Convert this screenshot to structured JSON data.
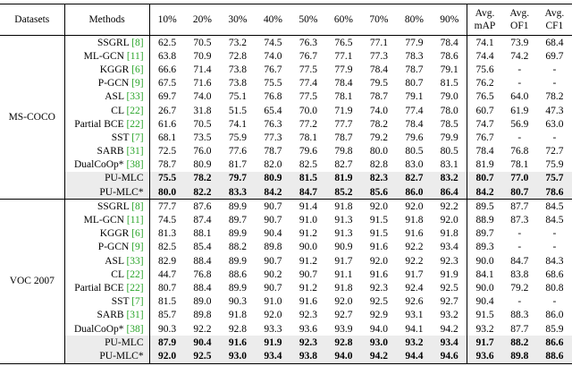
{
  "table": {
    "headers": [
      "Datasets",
      "Methods",
      "10%",
      "20%",
      "30%",
      "40%",
      "50%",
      "60%",
      "70%",
      "80%",
      "90%",
      "Avg. mAP",
      "Avg. OF1",
      "Avg. CF1"
    ],
    "groups": [
      {
        "dataset": "MS-COCO",
        "rows": [
          {
            "method": "SSGRL",
            "ref": "[8]",
            "values": [
              "62.5",
              "70.5",
              "73.2",
              "74.5",
              "76.3",
              "76.5",
              "77.1",
              "77.9",
              "78.4",
              "74.1",
              "73.9",
              "68.4"
            ]
          },
          {
            "method": "ML-GCN",
            "ref": "[11]",
            "values": [
              "63.8",
              "70.9",
              "72.8",
              "74.0",
              "76.7",
              "77.1",
              "77.3",
              "78.3",
              "78.6",
              "74.4",
              "74.2",
              "69.7"
            ]
          },
          {
            "method": "KGGR",
            "ref": "[6]",
            "values": [
              "66.6",
              "71.4",
              "73.8",
              "76.7",
              "77.5",
              "77.9",
              "78.4",
              "78.7",
              "79.1",
              "75.6",
              "-",
              "-"
            ]
          },
          {
            "method": "P-GCN",
            "ref": "[9]",
            "values": [
              "67.5",
              "71.6",
              "73.8",
              "75.5",
              "77.4",
              "78.4",
              "79.5",
              "80.7",
              "81.5",
              "76.2",
              "-",
              "-"
            ]
          },
          {
            "method": "ASL",
            "ref": "[33]",
            "values": [
              "69.7",
              "74.0",
              "75.1",
              "76.8",
              "77.5",
              "78.1",
              "78.7",
              "79.1",
              "79.0",
              "76.5",
              "64.0",
              "78.2"
            ]
          },
          {
            "method": "CL",
            "ref": "[22]",
            "values": [
              "26.7",
              "31.8",
              "51.5",
              "65.4",
              "70.0",
              "71.9",
              "74.0",
              "77.4",
              "78.0",
              "60.7",
              "61.9",
              "47.3"
            ]
          },
          {
            "method": "Partial BCE",
            "ref": "[22]",
            "values": [
              "61.6",
              "70.5",
              "74.1",
              "76.3",
              "77.2",
              "77.7",
              "78.2",
              "78.4",
              "78.5",
              "74.7",
              "56.9",
              "63.0"
            ]
          },
          {
            "method": "SST",
            "ref": "[7]",
            "values": [
              "68.1",
              "73.5",
              "75.9",
              "77.3",
              "78.1",
              "78.7",
              "79.2",
              "79.6",
              "79.9",
              "76.7",
              "-",
              "-"
            ]
          },
          {
            "method": "SARB",
            "ref": "[31]",
            "values": [
              "72.5",
              "76.0",
              "77.6",
              "78.7",
              "79.6",
              "79.8",
              "80.0",
              "80.5",
              "80.5",
              "78.4",
              "76.8",
              "72.7"
            ]
          },
          {
            "method": "DualCoOp*",
            "ref": "[38]",
            "values": [
              "78.7",
              "80.9",
              "81.7",
              "82.0",
              "82.5",
              "82.7",
              "82.8",
              "83.0",
              "83.1",
              "81.9",
              "78.1",
              "75.9"
            ]
          },
          {
            "method": "PU-MLC",
            "values": [
              "75.5",
              "78.2",
              "79.7",
              "80.9",
              "81.5",
              "81.9",
              "82.3",
              "82.7",
              "83.2",
              "80.7",
              "77.0",
              "75.7"
            ]
          },
          {
            "method": "PU-MLC*",
            "values": [
              "80.0",
              "82.2",
              "83.3",
              "84.2",
              "84.7",
              "85.2",
              "85.6",
              "86.0",
              "86.4",
              "84.2",
              "80.7",
              "78.6"
            ]
          }
        ]
      },
      {
        "dataset": "VOC 2007",
        "rows": [
          {
            "method": "SSGRL",
            "ref": "[8]",
            "values": [
              "77.7",
              "87.6",
              "89.9",
              "90.7",
              "91.4",
              "91.8",
              "92.0",
              "92.0",
              "92.2",
              "89.5",
              "87.7",
              "84.5"
            ]
          },
          {
            "method": "ML-GCN",
            "ref": "[11]",
            "values": [
              "74.5",
              "87.4",
              "89.7",
              "90.7",
              "91.0",
              "91.3",
              "91.5",
              "91.8",
              "92.0",
              "88.9",
              "87.3",
              "84.5"
            ]
          },
          {
            "method": "KGGR",
            "ref": "[6]",
            "values": [
              "81.3",
              "88.1",
              "89.9",
              "90.4",
              "91.2",
              "91.3",
              "91.5",
              "91.6",
              "91.8",
              "89.7",
              "-",
              "-"
            ]
          },
          {
            "method": "P-GCN",
            "ref": "[9]",
            "values": [
              "82.5",
              "85.4",
              "88.2",
              "89.8",
              "90.0",
              "90.9",
              "91.6",
              "92.2",
              "93.4",
              "89.3",
              "-",
              "-"
            ]
          },
          {
            "method": "ASL",
            "ref": "[33]",
            "values": [
              "82.9",
              "88.4",
              "89.9",
              "90.7",
              "91.2",
              "91.7",
              "92.0",
              "92.2",
              "92.3",
              "90.0",
              "84.7",
              "84.3"
            ]
          },
          {
            "method": "CL",
            "ref": "[22]",
            "values": [
              "44.7",
              "76.8",
              "88.6",
              "90.2",
              "90.7",
              "91.1",
              "91.6",
              "91.7",
              "91.9",
              "84.1",
              "83.8",
              "68.6"
            ]
          },
          {
            "method": "Partial BCE",
            "ref": "[22]",
            "values": [
              "80.7",
              "88.4",
              "89.9",
              "90.7",
              "91.2",
              "91.8",
              "92.3",
              "92.4",
              "92.5",
              "90.0",
              "79.2",
              "80.8"
            ]
          },
          {
            "method": "SST",
            "ref": "[7]",
            "values": [
              "81.5",
              "89.0",
              "90.3",
              "91.0",
              "91.6",
              "92.0",
              "92.5",
              "92.6",
              "92.7",
              "90.4",
              "-",
              "-"
            ]
          },
          {
            "method": "SARB",
            "ref": "[31]",
            "values": [
              "85.7",
              "89.8",
              "91.8",
              "92.0",
              "92.3",
              "92.7",
              "92.9",
              "93.1",
              "93.2",
              "91.5",
              "88.3",
              "86.0"
            ]
          },
          {
            "method": "DualCoOp*",
            "ref": "[38]",
            "values": [
              "90.3",
              "92.2",
              "92.8",
              "93.3",
              "93.6",
              "93.9",
              "94.0",
              "94.1",
              "94.2",
              "93.2",
              "87.7",
              "85.9"
            ]
          },
          {
            "method": "PU-MLC",
            "values": [
              "87.9",
              "90.4",
              "91.6",
              "91.9",
              "92.3",
              "92.8",
              "93.0",
              "93.2",
              "93.4",
              "91.7",
              "88.2",
              "86.6"
            ]
          },
          {
            "method": "PU-MLC*",
            "values": [
              "92.0",
              "92.5",
              "93.0",
              "93.4",
              "93.8",
              "94.0",
              "94.2",
              "94.4",
              "94.6",
              "93.6",
              "89.8",
              "88.6"
            ]
          }
        ]
      }
    ]
  }
}
